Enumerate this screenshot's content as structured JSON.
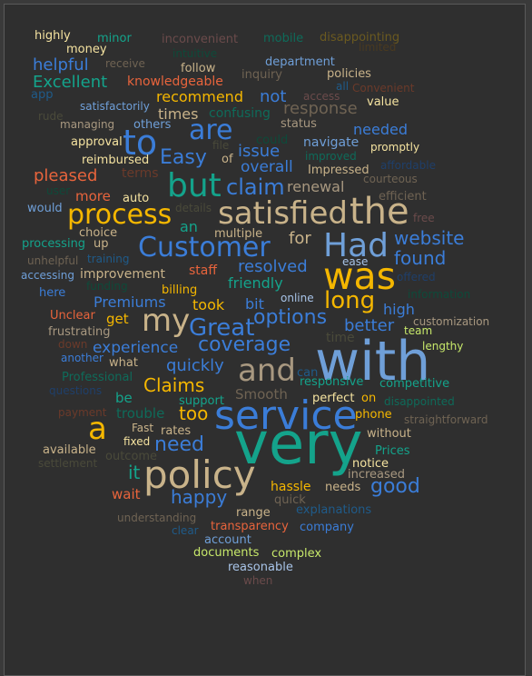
{
  "chart_data": {
    "type": "wordcloud",
    "title": "",
    "colors": {
      "background": "#2f2f2f",
      "frame": "#5a5a5a",
      "page": "#3a3a3a"
    },
    "words": [
      {
        "text": "very",
        "weight": 64,
        "color": "#14a38b"
      },
      {
        "text": "with",
        "weight": 60,
        "color": "#6f9fd8"
      },
      {
        "text": "service",
        "weight": 44,
        "color": "#3b7dd8"
      },
      {
        "text": "policy",
        "weight": 42,
        "color": "#c9b38a"
      },
      {
        "text": "was",
        "weight": 41,
        "color": "#f5b700"
      },
      {
        "text": "the",
        "weight": 40,
        "color": "#c9b38a"
      },
      {
        "text": "but",
        "weight": 36,
        "color": "#14a38b"
      },
      {
        "text": "Had",
        "weight": 36,
        "color": "#6f9fd8"
      },
      {
        "text": "satisfied",
        "weight": 34,
        "color": "#c9b38a"
      },
      {
        "text": "a",
        "weight": 34,
        "color": "#f5b700"
      },
      {
        "text": "and",
        "weight": 34,
        "color": "#a89880"
      },
      {
        "text": "to",
        "weight": 38,
        "color": "#3b7dd8"
      },
      {
        "text": "my",
        "weight": 34,
        "color": "#c9b38a"
      },
      {
        "text": "are",
        "weight": 30,
        "color": "#3b7dd8"
      },
      {
        "text": "Customer",
        "weight": 30,
        "color": "#3b7dd8"
      },
      {
        "text": "process",
        "weight": 30,
        "color": "#f5b700"
      },
      {
        "text": "Great",
        "weight": 26,
        "color": "#3b7dd8"
      },
      {
        "text": "long",
        "weight": 26,
        "color": "#f5b700"
      },
      {
        "text": "claim",
        "weight": 24,
        "color": "#3b7dd8"
      },
      {
        "text": "Easy",
        "weight": 22,
        "color": "#3b7dd8"
      },
      {
        "text": "options",
        "weight": 22,
        "color": "#3b7dd8"
      },
      {
        "text": "coverage",
        "weight": 22,
        "color": "#3b7dd8"
      },
      {
        "text": "website",
        "weight": 20,
        "color": "#3b7dd8"
      },
      {
        "text": "found",
        "weight": 20,
        "color": "#3b7dd8"
      },
      {
        "text": "Claims",
        "weight": 20,
        "color": "#f5b700"
      },
      {
        "text": "need",
        "weight": 22,
        "color": "#3b7dd8"
      },
      {
        "text": "happy",
        "weight": 20,
        "color": "#3b7dd8"
      },
      {
        "text": "good",
        "weight": 22,
        "color": "#3b7dd8"
      },
      {
        "text": "too",
        "weight": 20,
        "color": "#f5b700"
      },
      {
        "text": "it",
        "weight": 20,
        "color": "#14a38b"
      },
      {
        "text": "better",
        "weight": 18,
        "color": "#3b7dd8"
      },
      {
        "text": "quickly",
        "weight": 18,
        "color": "#3b7dd8"
      },
      {
        "text": "experience",
        "weight": 17,
        "color": "#3b7dd8"
      },
      {
        "text": "for",
        "weight": 18,
        "color": "#c9b38a"
      },
      {
        "text": "resolved",
        "weight": 18,
        "color": "#3b7dd8"
      },
      {
        "text": "Excellent",
        "weight": 18,
        "color": "#14a38b"
      },
      {
        "text": "helpful",
        "weight": 18,
        "color": "#3b7dd8"
      },
      {
        "text": "pleased",
        "weight": 18,
        "color": "#e8643c"
      },
      {
        "text": "issue",
        "weight": 18,
        "color": "#3b7dd8"
      },
      {
        "text": "overall",
        "weight": 17,
        "color": "#3b7dd8"
      },
      {
        "text": "response",
        "weight": 18,
        "color": "#6f6353"
      },
      {
        "text": "recommend",
        "weight": 16,
        "color": "#f5b700"
      },
      {
        "text": "not",
        "weight": 18,
        "color": "#3b7dd8"
      },
      {
        "text": "times",
        "weight": 16,
        "color": "#c9b38a"
      },
      {
        "text": "renewal",
        "weight": 16,
        "color": "#a89880"
      },
      {
        "text": "Premiums",
        "weight": 16,
        "color": "#3b7dd8"
      },
      {
        "text": "took",
        "weight": 16,
        "color": "#f5b700"
      },
      {
        "text": "bit",
        "weight": 16,
        "color": "#3b7dd8"
      },
      {
        "text": "friendly",
        "weight": 16,
        "color": "#14a38b"
      },
      {
        "text": "high",
        "weight": 16,
        "color": "#3b7dd8"
      },
      {
        "text": "Smooth",
        "weight": 15,
        "color": "#6f6353"
      },
      {
        "text": "trouble",
        "weight": 15,
        "color": "#0e6b5a"
      },
      {
        "text": "navigate",
        "weight": 14,
        "color": "#6f9fd8"
      },
      {
        "text": "needed",
        "weight": 16,
        "color": "#3b7dd8"
      },
      {
        "text": "more",
        "weight": 15,
        "color": "#e8643c"
      },
      {
        "text": "an",
        "weight": 16,
        "color": "#14a38b"
      },
      {
        "text": "get",
        "weight": 15,
        "color": "#f5b700"
      },
      {
        "text": "be",
        "weight": 15,
        "color": "#14a38b"
      },
      {
        "text": "hassle",
        "weight": 14,
        "color": "#f5b700"
      },
      {
        "text": "wait",
        "weight": 15,
        "color": "#e8643c"
      },
      {
        "text": "knowledgeable",
        "weight": 14,
        "color": "#e8643c"
      },
      {
        "text": "confusing",
        "weight": 14,
        "color": "#0e6b5a"
      },
      {
        "text": "staff",
        "weight": 14,
        "color": "#e8643c"
      },
      {
        "text": "improvement",
        "weight": 14,
        "color": "#c9b38a"
      },
      {
        "text": "billing",
        "weight": 13,
        "color": "#f5b700"
      },
      {
        "text": "phone",
        "weight": 13,
        "color": "#f5b700"
      },
      {
        "text": "rates",
        "weight": 13,
        "color": "#c9b38a"
      },
      {
        "text": "Fast",
        "weight": 12,
        "color": "#c9b38a"
      },
      {
        "text": "Impressed",
        "weight": 13,
        "color": "#c9b38a"
      },
      {
        "text": "promptly",
        "weight": 12,
        "color": "#f5e3a0"
      },
      {
        "text": "efficient",
        "weight": 13,
        "color": "#6f6353"
      },
      {
        "text": "courteous",
        "weight": 12,
        "color": "#6f6353"
      },
      {
        "text": "competitive",
        "weight": 13,
        "color": "#14a38b"
      },
      {
        "text": "responsive",
        "weight": 13,
        "color": "#14a38b"
      },
      {
        "text": "what",
        "weight": 13,
        "color": "#c9b38a"
      },
      {
        "text": "support",
        "weight": 13,
        "color": "#14a38b"
      },
      {
        "text": "perfect",
        "weight": 13,
        "color": "#f5e3a0"
      },
      {
        "text": "on",
        "weight": 13,
        "color": "#f5b700"
      },
      {
        "text": "without",
        "weight": 13,
        "color": "#c9b38a"
      },
      {
        "text": "Prices",
        "weight": 13,
        "color": "#14a38b"
      },
      {
        "text": "increased",
        "weight": 13,
        "color": "#a89880"
      },
      {
        "text": "notice",
        "weight": 13,
        "color": "#f5e3a0"
      },
      {
        "text": "needs",
        "weight": 13,
        "color": "#c9b38a"
      },
      {
        "text": "quick",
        "weight": 13,
        "color": "#6f6353"
      },
      {
        "text": "range",
        "weight": 13,
        "color": "#c9b38a"
      },
      {
        "text": "explanations",
        "weight": 13,
        "color": "#1f5b8a"
      },
      {
        "text": "transparency",
        "weight": 13,
        "color": "#e8643c"
      },
      {
        "text": "company",
        "weight": 13,
        "color": "#3b7dd8"
      },
      {
        "text": "account",
        "weight": 13,
        "color": "#6f9fd8"
      },
      {
        "text": "documents",
        "weight": 13,
        "color": "#c7e86a"
      },
      {
        "text": "complex",
        "weight": 13,
        "color": "#c7e86a"
      },
      {
        "text": "reasonable",
        "weight": 13,
        "color": "#a8c4e8"
      },
      {
        "text": "when",
        "weight": 12,
        "color": "#6b4b4b"
      },
      {
        "text": "clear",
        "weight": 12,
        "color": "#1f5b8a"
      },
      {
        "text": "understanding",
        "weight": 12,
        "color": "#6f6353"
      },
      {
        "text": "outcome",
        "weight": 13,
        "color": "#4a4a3a"
      },
      {
        "text": "fixed",
        "weight": 12,
        "color": "#f5e3a0"
      },
      {
        "text": "available",
        "weight": 13,
        "color": "#c9b38a"
      },
      {
        "text": "settlement",
        "weight": 12,
        "color": "#4a4a3a"
      },
      {
        "text": "straightforward",
        "weight": 12,
        "color": "#6f6353"
      },
      {
        "text": "payment",
        "weight": 12,
        "color": "#6b3a2a"
      },
      {
        "text": "questions",
        "weight": 12,
        "color": "#1f3f6a"
      },
      {
        "text": "disappointed",
        "weight": 12,
        "color": "#0e6b5a"
      },
      {
        "text": "Professional",
        "weight": 13,
        "color": "#0e6b5a"
      },
      {
        "text": "another",
        "weight": 12,
        "color": "#3b7dd8"
      },
      {
        "text": "down",
        "weight": 12,
        "color": "#6b3a2a"
      },
      {
        "text": "frustrating",
        "weight": 13,
        "color": "#a89880"
      },
      {
        "text": "Unclear",
        "weight": 13,
        "color": "#e8643c"
      },
      {
        "text": "lengthy",
        "weight": 12,
        "color": "#c7e86a"
      },
      {
        "text": "team",
        "weight": 12,
        "color": "#c7e86a"
      },
      {
        "text": "customization",
        "weight": 12,
        "color": "#a89880"
      },
      {
        "text": "time",
        "weight": 14,
        "color": "#4a4a3a"
      },
      {
        "text": "can",
        "weight": 13,
        "color": "#1f5b8a"
      },
      {
        "text": "online",
        "weight": 12,
        "color": "#a8c4e8"
      },
      {
        "text": "information",
        "weight": 12,
        "color": "#0e4a3a"
      },
      {
        "text": "offered",
        "weight": 12,
        "color": "#1f3f6a"
      },
      {
        "text": "ease",
        "weight": 12,
        "color": "#a8c4e8"
      },
      {
        "text": "free",
        "weight": 12,
        "color": "#6b4b4b"
      },
      {
        "text": "affordable",
        "weight": 12,
        "color": "#1f3f6a"
      },
      {
        "text": "improved",
        "weight": 12,
        "color": "#0e6b5a"
      },
      {
        "text": "here",
        "weight": 13,
        "color": "#3b7dd8"
      },
      {
        "text": "accessing",
        "weight": 12,
        "color": "#6f9fd8"
      },
      {
        "text": "unhelpful",
        "weight": 12,
        "color": "#6f6353"
      },
      {
        "text": "training",
        "weight": 12,
        "color": "#1f5b8a"
      },
      {
        "text": "funding",
        "weight": 12,
        "color": "#0e4a3a"
      },
      {
        "text": "processing",
        "weight": 13,
        "color": "#14a38b"
      },
      {
        "text": "up",
        "weight": 13,
        "color": "#c9b38a"
      },
      {
        "text": "choice",
        "weight": 13,
        "color": "#c9b38a"
      },
      {
        "text": "multiple",
        "weight": 13,
        "color": "#c9b38a"
      },
      {
        "text": "details",
        "weight": 12,
        "color": "#4a4a3a"
      },
      {
        "text": "would",
        "weight": 13,
        "color": "#6f9fd8"
      },
      {
        "text": "auto",
        "weight": 13,
        "color": "#f5e3a0"
      },
      {
        "text": "user",
        "weight": 12,
        "color": "#0e4a3a"
      },
      {
        "text": "terms",
        "weight": 14,
        "color": "#6b3a2a"
      },
      {
        "text": "reimbursed",
        "weight": 13,
        "color": "#f5e3a0"
      },
      {
        "text": "of",
        "weight": 13,
        "color": "#c9b38a"
      },
      {
        "text": "file",
        "weight": 12,
        "color": "#4a4a3a"
      },
      {
        "text": "could",
        "weight": 13,
        "color": "#0e4a3a"
      },
      {
        "text": "approval",
        "weight": 13,
        "color": "#f5e3a0"
      },
      {
        "text": "others",
        "weight": 13,
        "color": "#6f9fd8"
      },
      {
        "text": "status",
        "weight": 13,
        "color": "#a89880"
      },
      {
        "text": "managing",
        "weight": 12,
        "color": "#a89880"
      },
      {
        "text": "satisfactorily",
        "weight": 12,
        "color": "#6f9fd8"
      },
      {
        "text": "rude",
        "weight": 12,
        "color": "#4a4a3a"
      },
      {
        "text": "app",
        "weight": 13,
        "color": "#1f5b8a"
      },
      {
        "text": "access",
        "weight": 12,
        "color": "#6b4b4b"
      },
      {
        "text": "all",
        "weight": 12,
        "color": "#1f5b8a"
      },
      {
        "text": "Convenient",
        "weight": 12,
        "color": "#6b3a2a"
      },
      {
        "text": "value",
        "weight": 13,
        "color": "#f5e3a0"
      },
      {
        "text": "inquiry",
        "weight": 13,
        "color": "#6f6353"
      },
      {
        "text": "policies",
        "weight": 13,
        "color": "#c9b38a"
      },
      {
        "text": "department",
        "weight": 13,
        "color": "#6f9fd8"
      },
      {
        "text": "follow",
        "weight": 13,
        "color": "#c9b38a"
      },
      {
        "text": "receive",
        "weight": 12,
        "color": "#6f6353"
      },
      {
        "text": "intuitive",
        "weight": 12,
        "color": "#0e4a3a"
      },
      {
        "text": "money",
        "weight": 13,
        "color": "#f5e3a0"
      },
      {
        "text": "highly",
        "weight": 13,
        "color": "#f5e3a0"
      },
      {
        "text": "minor",
        "weight": 13,
        "color": "#14a38b"
      },
      {
        "text": "inconvenient",
        "weight": 13,
        "color": "#6b4b4b"
      },
      {
        "text": "mobile",
        "weight": 13,
        "color": "#0e6b5a"
      },
      {
        "text": "disappointing",
        "weight": 13,
        "color": "#6b5a20"
      },
      {
        "text": "limited",
        "weight": 12,
        "color": "#4a3a20"
      }
    ]
  }
}
